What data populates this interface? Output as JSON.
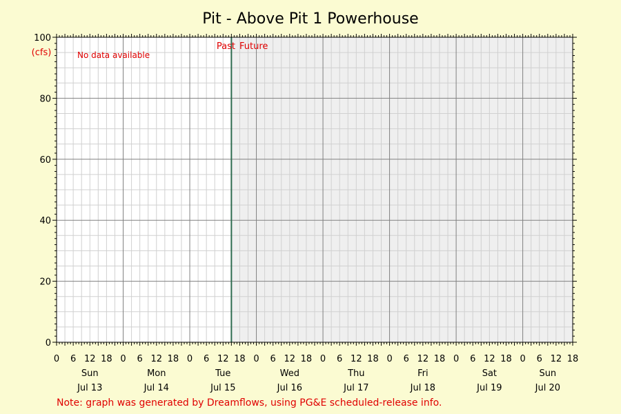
{
  "chart_data": {
    "type": "line",
    "title": "Pit - Above Pit 1 Powerhouse",
    "ylabel": "(cfs)",
    "xlabel": "",
    "ylim": [
      0,
      100
    ],
    "yticks": [
      0,
      20,
      40,
      60,
      80,
      100
    ],
    "xlim_hours": [
      0,
      186
    ],
    "now_hour": 63,
    "hour_tick_labels": [
      "0",
      "6",
      "12",
      "18"
    ],
    "days": [
      {
        "weekday": "Sun",
        "date": "Jul 13"
      },
      {
        "weekday": "Mon",
        "date": "Jul 14"
      },
      {
        "weekday": "Tue",
        "date": "Jul 15"
      },
      {
        "weekday": "Wed",
        "date": "Jul 16"
      },
      {
        "weekday": "Thu",
        "date": "Jul 17"
      },
      {
        "weekday": "Fri",
        "date": "Jul 18"
      },
      {
        "weekday": "Sat",
        "date": "Jul 19"
      },
      {
        "weekday": "Sun",
        "date": "Jul 20"
      }
    ],
    "series": [],
    "past_label": "Past",
    "future_label": "Future",
    "no_data_text": "No data available",
    "grid": true,
    "colors": {
      "background": "#fbfbd2",
      "plot_past": "#ffffff",
      "plot_future": "#efefef",
      "grid_minor": "#d0d0d0",
      "grid_major": "#808080",
      "now_line": "#2e6b4f",
      "annotation": "#e00000"
    }
  },
  "footer": {
    "note": "Note: graph was generated by Dreamflows, using PG&E scheduled-release info."
  }
}
